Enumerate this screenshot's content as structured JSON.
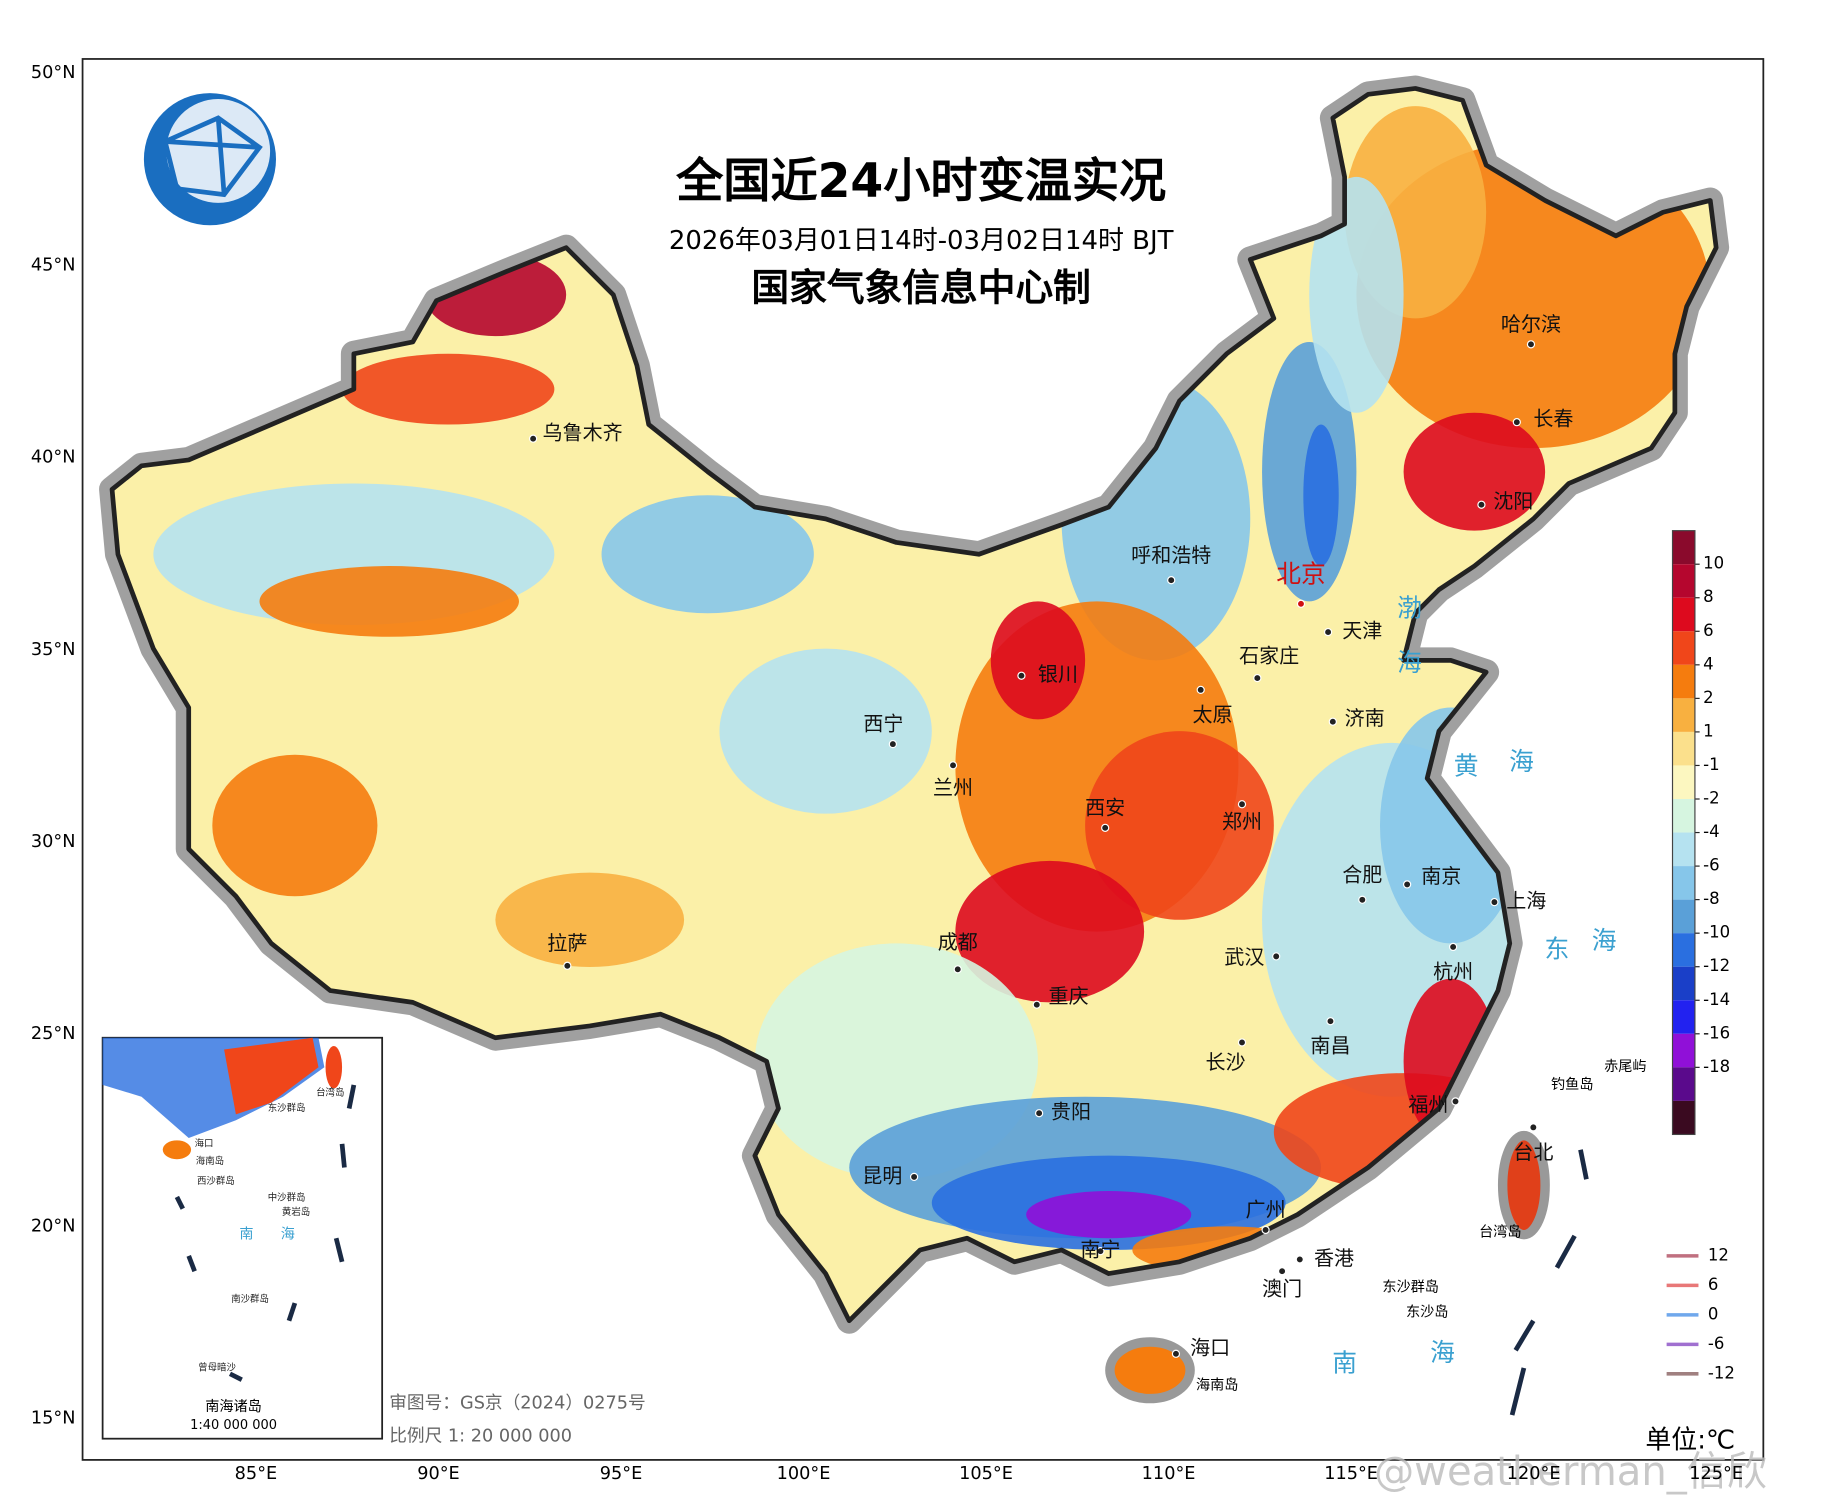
{
  "header": {
    "title": "全国近24小时变温实况",
    "subtitle": "2026年03月01日14时-03月02日14时 BJT",
    "credit": "国家气象信息中心制"
  },
  "lat_labels": [
    "50°N",
    "45°N",
    "40°N",
    "35°N",
    "30°N",
    "25°N",
    "20°N",
    "15°N"
  ],
  "lon_labels": [
    "85°E",
    "90°E",
    "95°E",
    "100°E",
    "105°E",
    "110°E",
    "115°E",
    "120°E",
    "125°E"
  ],
  "cities": [
    "乌鲁木齐",
    "哈尔滨",
    "长春",
    "沈阳",
    "呼和浩特",
    "北京",
    "天津",
    "石家庄",
    "太原",
    "济南",
    "银川",
    "西宁",
    "兰州",
    "西安",
    "郑州",
    "合肥",
    "南京",
    "上海",
    "拉萨",
    "成都",
    "重庆",
    "武汉",
    "杭州",
    "南昌",
    "长沙",
    "福州",
    "贵阳",
    "昆明",
    "台北",
    "广州",
    "南宁",
    "香港",
    "澳门",
    "海口"
  ],
  "seas": [
    "渤",
    "海",
    "黄",
    "海",
    "东",
    "海",
    "南",
    "海"
  ],
  "islands": [
    "钓鱼岛",
    "赤尾屿",
    "东沙群岛",
    "东沙岛",
    "台湾岛",
    "海南岛"
  ],
  "colorbar": {
    "ticks": [
      10,
      8,
      6,
      4,
      2,
      1,
      -1,
      -2,
      -4,
      -6,
      -8,
      -10,
      -12,
      -14,
      -16,
      -18
    ],
    "colors": [
      "#8a0a2c",
      "#b5062e",
      "#dd0a1e",
      "#f0461a",
      "#f57c0e",
      "#f8b040",
      "#fbe08c",
      "#fcf7c0",
      "#d6f5e0",
      "#b5e2f0",
      "#86c6ea",
      "#5aa0d8",
      "#2a6fe0",
      "#1a3fc8",
      "#2222f0",
      "#9010d8",
      "#5a0a8c",
      "#3a0a20"
    ]
  },
  "contour_legend": {
    "values": [
      12,
      6,
      0,
      -6,
      -12
    ],
    "colors": [
      "#c07080",
      "#e87878",
      "#70a8ec",
      "#a070d0",
      "#a08080"
    ]
  },
  "inset": {
    "title": "南海诸岛",
    "scale": "1:40 000 000",
    "labels": [
      "台湾岛",
      "东沙群岛",
      "海口",
      "海南岛",
      "西沙群岛",
      "中沙群岛",
      "黄岩岛",
      "南",
      "海",
      "南沙群岛",
      "曾母暗沙"
    ]
  },
  "footer": {
    "approval": "审图号：GS京（2024）0275号",
    "scale": "比例尺 1: 20 000 000",
    "unit": "单位:℃",
    "watermark": "@weatherman_信欣"
  }
}
